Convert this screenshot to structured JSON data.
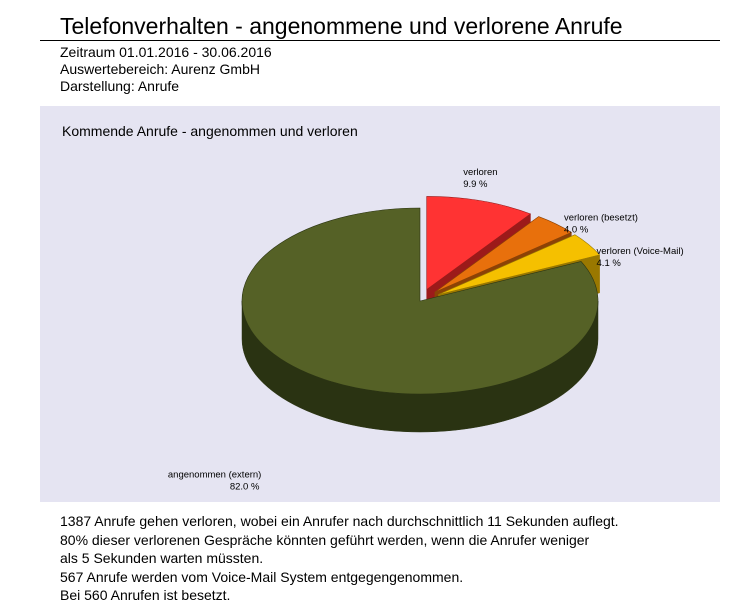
{
  "header": {
    "title": "Telefonverhalten - angenommene und verlorene Anrufe",
    "lines": [
      "Zeitraum 01.01.2016 - 30.06.2016",
      "Auswertebereich: Aurenz GmbH",
      "Darstellung: Anrufe"
    ]
  },
  "chart_data": {
    "type": "pie",
    "title": "Kommende Anrufe - angenommen und verloren",
    "slices": [
      {
        "name": "verloren",
        "value": 9.9,
        "label": "9.9 %",
        "color": "#ff3333",
        "side": "#9c1a1a",
        "exploded": true
      },
      {
        "name": "verloren (besetzt)",
        "value": 4.0,
        "label": "4.0 %",
        "color": "#e8700c",
        "side": "#8c4206",
        "exploded": true
      },
      {
        "name": "verloren (Voice-Mail)",
        "value": 4.1,
        "label": "4.1 %",
        "color": "#f5c000",
        "side": "#9a7800",
        "exploded": true
      },
      {
        "name": "angenommen (extern)",
        "value": 82.0,
        "label": "82.0 %",
        "color": "#556126",
        "side": "#2a3312",
        "exploded": false
      }
    ]
  },
  "summary": {
    "lines": [
      "1387 Anrufe gehen verloren, wobei ein Anrufer nach durchschnittlich 11 Sekunden auflegt.",
      "80% dieser verlorenen Gespräche könnten geführt werden, wenn die Anrufer weniger",
      "als 5 Sekunden warten müssten.",
      "567 Anrufe werden vom Voice-Mail System entgegengenommen.",
      "Bei 560 Anrufen ist besetzt."
    ]
  }
}
